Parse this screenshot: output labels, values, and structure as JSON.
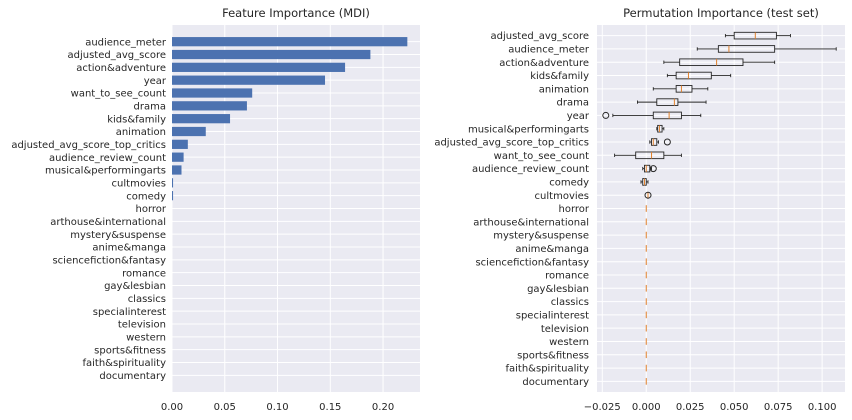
{
  "chart_data": [
    {
      "type": "bar",
      "orientation": "horizontal",
      "title": "Feature Importance (MDI)",
      "xlabel": "",
      "ylabel": "",
      "xlim": [
        0,
        0.235
      ],
      "xticks": [
        "0.00",
        "0.05",
        "0.10",
        "0.15",
        "0.20"
      ],
      "grid": true,
      "bar_color": "#4c72b0",
      "background_color": "#eaeaf2",
      "categories": [
        "audience_meter",
        "adjusted_avg_score",
        "action&adventure",
        "year",
        "want_to_see_count",
        "drama",
        "kids&family",
        "animation",
        "adjusted_avg_score_top_critics",
        "audience_review_count",
        "musical&performingarts",
        "cultmovies",
        "comedy",
        "horror",
        "arthouse&international",
        "mystery&suspense",
        "anime&manga",
        "sciencefiction&fantasy",
        "romance",
        "gay&lesbian",
        "classics",
        "specialinterest",
        "television",
        "western",
        "sports&fitness",
        "faith&spirituality",
        "documentary"
      ],
      "values": [
        0.223,
        0.188,
        0.164,
        0.145,
        0.076,
        0.071,
        0.055,
        0.032,
        0.015,
        0.011,
        0.009,
        0.001,
        0.001,
        0,
        0,
        0,
        0,
        0,
        0,
        0,
        0,
        0,
        0,
        0,
        0,
        0,
        0
      ]
    },
    {
      "type": "boxplot",
      "orientation": "horizontal",
      "title": "Permutation Importance (test set)",
      "xlabel": "",
      "ylabel": "",
      "xlim": [
        -0.028,
        0.113
      ],
      "xticks": [
        "−0.025",
        "0.000",
        "0.025",
        "0.050",
        "0.075",
        "0.100"
      ],
      "grid": true,
      "median_color": "#e1812c",
      "background_color": "#eaeaf2",
      "categories": [
        "adjusted_avg_score",
        "audience_meter",
        "action&adventure",
        "kids&family",
        "animation",
        "drama",
        "year",
        "musical&performingarts",
        "adjusted_avg_score_top_critics",
        "want_to_see_count",
        "audience_review_count",
        "comedy",
        "cultmovies",
        "horror",
        "arthouse&international",
        "mystery&suspense",
        "anime&manga",
        "sciencefiction&fantasy",
        "romance",
        "gay&lesbian",
        "classics",
        "specialinterest",
        "television",
        "western",
        "sports&fitness",
        "faith&spirituality",
        "documentary"
      ],
      "boxes": [
        {
          "whislo": 0.045,
          "q1": 0.05,
          "med": 0.062,
          "q3": 0.074,
          "whishi": 0.082,
          "fliers": []
        },
        {
          "whislo": 0.029,
          "q1": 0.041,
          "med": 0.047,
          "q3": 0.073,
          "whishi": 0.108,
          "fliers": []
        },
        {
          "whislo": 0.01,
          "q1": 0.019,
          "med": 0.04,
          "q3": 0.055,
          "whishi": 0.073,
          "fliers": []
        },
        {
          "whislo": 0.012,
          "q1": 0.017,
          "med": 0.024,
          "q3": 0.037,
          "whishi": 0.048,
          "fliers": []
        },
        {
          "whislo": 0.004,
          "q1": 0.017,
          "med": 0.02,
          "q3": 0.026,
          "whishi": 0.035,
          "fliers": []
        },
        {
          "whislo": -0.005,
          "q1": 0.006,
          "med": 0.016,
          "q3": 0.018,
          "whishi": 0.034,
          "fliers": []
        },
        {
          "whislo": -0.019,
          "q1": 0.004,
          "med": 0.013,
          "q3": 0.02,
          "whishi": 0.031,
          "fliers": [
            -0.023
          ]
        },
        {
          "whislo": 0.006,
          "q1": 0.0065,
          "med": 0.0075,
          "q3": 0.009,
          "whishi": 0.01,
          "fliers": []
        },
        {
          "whislo": 0.002,
          "q1": 0.003,
          "med": 0.004,
          "q3": 0.006,
          "whishi": 0.007,
          "fliers": [
            0.012
          ]
        },
        {
          "whislo": -0.018,
          "q1": -0.006,
          "med": 0.003,
          "q3": 0.01,
          "whishi": 0.02,
          "fliers": []
        },
        {
          "whislo": -0.002,
          "q1": -0.001,
          "med": 0.0,
          "q3": 0.002,
          "whishi": 0.003,
          "fliers": [
            0.004
          ]
        },
        {
          "whislo": -0.003,
          "q1": -0.002,
          "med": -0.001,
          "q3": 0.0,
          "whishi": 0.001,
          "fliers": []
        },
        {
          "whislo": 0.001,
          "q1": 0.001,
          "med": 0.001,
          "q3": 0.001,
          "whishi": 0.001,
          "fliers": [
            0.001
          ]
        },
        {
          "whislo": 0,
          "q1": 0,
          "med": 0,
          "q3": 0,
          "whishi": 0,
          "fliers": []
        },
        {
          "whislo": 0,
          "q1": 0,
          "med": 0,
          "q3": 0,
          "whishi": 0,
          "fliers": []
        },
        {
          "whislo": 0,
          "q1": 0,
          "med": 0,
          "q3": 0,
          "whishi": 0,
          "fliers": []
        },
        {
          "whislo": 0,
          "q1": 0,
          "med": 0,
          "q3": 0,
          "whishi": 0,
          "fliers": []
        },
        {
          "whislo": 0,
          "q1": 0,
          "med": 0,
          "q3": 0,
          "whishi": 0,
          "fliers": []
        },
        {
          "whislo": 0,
          "q1": 0,
          "med": 0,
          "q3": 0,
          "whishi": 0,
          "fliers": []
        },
        {
          "whislo": 0,
          "q1": 0,
          "med": 0,
          "q3": 0,
          "whishi": 0,
          "fliers": []
        },
        {
          "whislo": 0,
          "q1": 0,
          "med": 0,
          "q3": 0,
          "whishi": 0,
          "fliers": []
        },
        {
          "whislo": 0,
          "q1": 0,
          "med": 0,
          "q3": 0,
          "whishi": 0,
          "fliers": []
        },
        {
          "whislo": 0,
          "q1": 0,
          "med": 0,
          "q3": 0,
          "whishi": 0,
          "fliers": []
        },
        {
          "whislo": 0,
          "q1": 0,
          "med": 0,
          "q3": 0,
          "whishi": 0,
          "fliers": []
        },
        {
          "whislo": 0,
          "q1": 0,
          "med": 0,
          "q3": 0,
          "whishi": 0,
          "fliers": []
        },
        {
          "whislo": 0,
          "q1": 0,
          "med": 0,
          "q3": 0,
          "whishi": 0,
          "fliers": []
        },
        {
          "whislo": 0,
          "q1": 0,
          "med": 0,
          "q3": 0,
          "whishi": 0,
          "fliers": []
        }
      ]
    }
  ]
}
